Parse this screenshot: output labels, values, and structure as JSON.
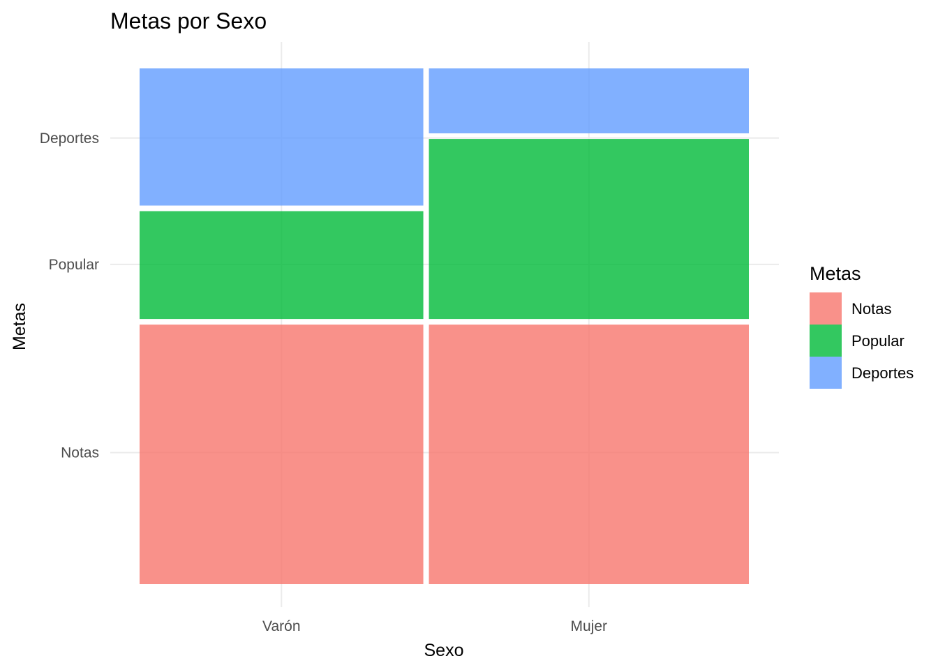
{
  "chart_data": {
    "type": "mosaic",
    "title": "Metas por Sexo",
    "xlabel": "Sexo",
    "ylabel": "Metas",
    "categories": [
      "Varón",
      "Mujer"
    ],
    "category_widths": [
      0.47,
      0.53
    ],
    "y_tick_labels": [
      "Notas",
      "Popular",
      "Deportes"
    ],
    "series": [
      {
        "name": "Notas",
        "color": "#F8766D",
        "values": [
          0.51,
          0.51
        ]
      },
      {
        "name": "Popular",
        "color": "#00BA38",
        "values": [
          0.22,
          0.36
        ]
      },
      {
        "name": "Deportes",
        "color": "#619CFF",
        "values": [
          0.27,
          0.13
        ]
      }
    ],
    "legend": {
      "title": "Metas",
      "position": "right"
    },
    "grid": true
  }
}
